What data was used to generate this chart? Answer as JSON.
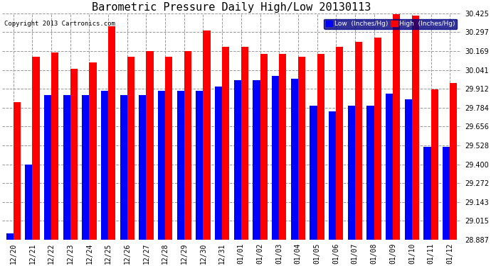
{
  "title": "Barometric Pressure Daily High/Low 20130113",
  "copyright": "Copyright 2013 Cartronics.com",
  "legend_low": "Low  (Inches/Hg)",
  "legend_high": "High  (Inches/Hg)",
  "dates": [
    "12/20",
    "12/21",
    "12/22",
    "12/23",
    "12/24",
    "12/25",
    "12/26",
    "12/27",
    "12/28",
    "12/29",
    "12/30",
    "12/31",
    "01/01",
    "01/02",
    "01/03",
    "01/04",
    "01/05",
    "01/06",
    "01/07",
    "01/08",
    "01/09",
    "01/10",
    "01/11",
    "01/12"
  ],
  "low_values": [
    28.93,
    29.4,
    29.87,
    29.87,
    29.87,
    29.9,
    29.87,
    29.87,
    29.9,
    29.9,
    29.9,
    29.93,
    29.97,
    29.97,
    30.0,
    29.98,
    29.8,
    29.76,
    29.8,
    29.8,
    29.88,
    29.84,
    29.52,
    29.52
  ],
  "high_values": [
    29.82,
    30.13,
    30.16,
    30.05,
    30.09,
    30.34,
    30.13,
    30.17,
    30.13,
    30.17,
    30.31,
    30.2,
    30.2,
    30.15,
    30.15,
    30.13,
    30.15,
    30.2,
    30.23,
    30.26,
    30.42,
    30.41,
    29.91,
    29.95
  ],
  "ymin": 28.887,
  "ymax": 30.425,
  "yticks": [
    28.887,
    29.015,
    29.143,
    29.272,
    29.4,
    29.528,
    29.656,
    29.784,
    29.912,
    30.041,
    30.169,
    30.297,
    30.425
  ],
  "bar_width": 0.38,
  "low_color": "#0000ff",
  "high_color": "#ff0000",
  "bg_color": "#ffffff",
  "grid_color": "#999999",
  "title_fontsize": 11,
  "tick_fontsize": 7,
  "copyright_fontsize": 6.5
}
